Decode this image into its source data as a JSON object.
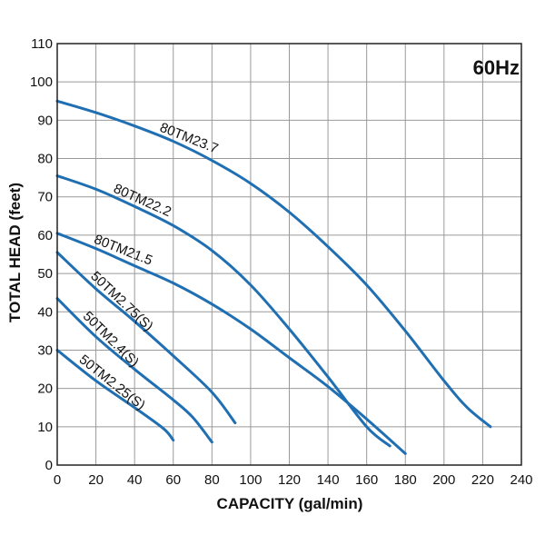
{
  "chart_data": {
    "type": "line",
    "title": "",
    "badge": "60Hz",
    "xlabel": "CAPACITY (gal/min)",
    "ylabel": "TOTAL HEAD (feet)",
    "xlim": [
      0,
      240
    ],
    "ylim": [
      0,
      110
    ],
    "xticks": [
      0,
      20,
      40,
      60,
      80,
      100,
      120,
      140,
      160,
      180,
      200,
      220,
      240
    ],
    "yticks": [
      0,
      10,
      20,
      30,
      40,
      50,
      60,
      70,
      80,
      90,
      100,
      110
    ],
    "grid": true,
    "line_color": "#1f6fb2",
    "series": [
      {
        "name": "80TM23.7",
        "x": [
          0,
          20,
          40,
          60,
          80,
          100,
          120,
          140,
          160,
          180,
          200,
          212,
          224
        ],
        "y": [
          95,
          92,
          88.5,
          84.5,
          79.5,
          73.5,
          66,
          57,
          47,
          35,
          22,
          15,
          10
        ],
        "label_at": 50
      },
      {
        "name": "80TM22.2",
        "x": [
          0,
          20,
          40,
          60,
          80,
          100,
          120,
          140,
          160,
          172
        ],
        "y": [
          75.5,
          72,
          67.5,
          62.5,
          56,
          47,
          35.5,
          23,
          10,
          5
        ],
        "label_at": 26
      },
      {
        "name": "80TM21.5",
        "x": [
          0,
          20,
          40,
          60,
          80,
          100,
          120,
          140,
          160,
          180
        ],
        "y": [
          60.5,
          56.5,
          52,
          47.5,
          42,
          35.5,
          28,
          20.5,
          12,
          3
        ],
        "label_at": 16
      },
      {
        "name": "50TM2.75(S)",
        "x": [
          0,
          20,
          40,
          60,
          80,
          92
        ],
        "y": [
          55.5,
          46,
          37.5,
          28.5,
          19,
          11
        ],
        "label_at": 14
      },
      {
        "name": "50TM2.4(S)",
        "x": [
          0,
          20,
          40,
          60,
          70,
          80
        ],
        "y": [
          43.5,
          33.5,
          25,
          17,
          12.5,
          6
        ],
        "label_at": 10
      },
      {
        "name": "50TM2.25(S)",
        "x": [
          0,
          20,
          40,
          55,
          60
        ],
        "y": [
          30,
          22,
          15,
          9.5,
          6.5
        ],
        "label_at": 8
      }
    ]
  }
}
